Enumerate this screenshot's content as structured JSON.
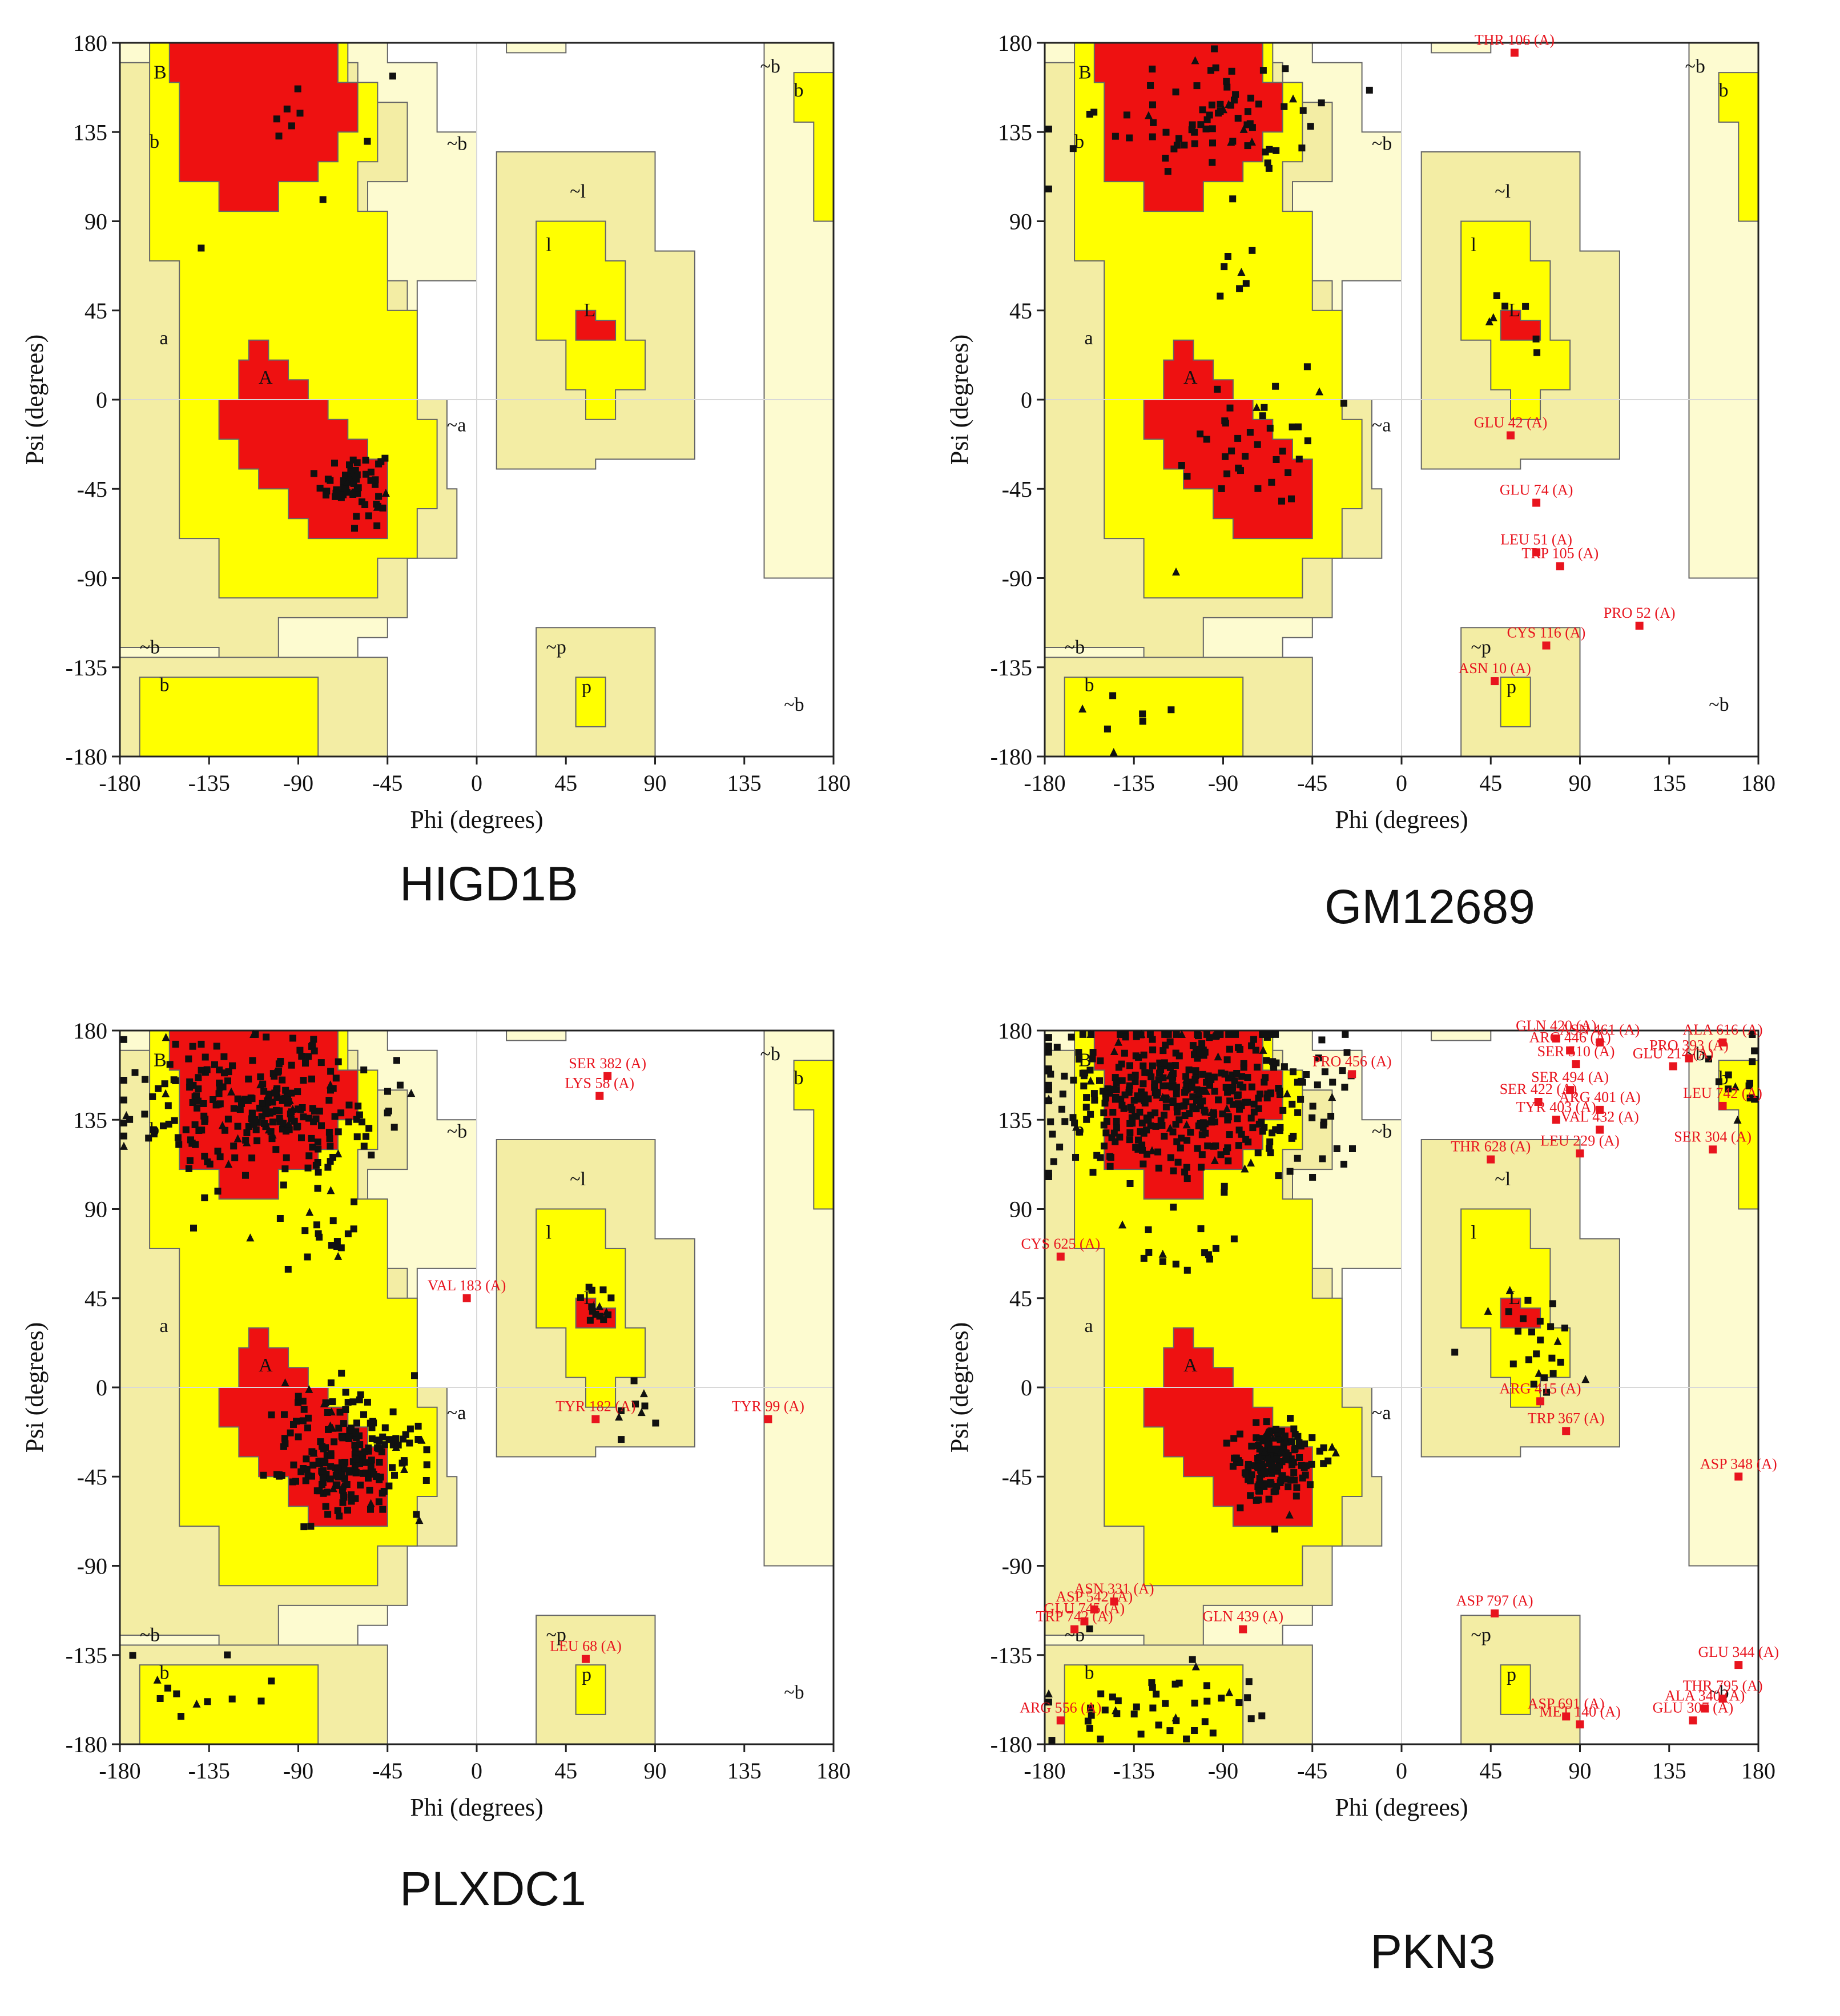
{
  "colors": {
    "core": "#ee1111",
    "allowed": "#ffff00",
    "generous": "#f3eda4",
    "outer": "#fdfbd0",
    "point": "#111111",
    "outlier": "#e8141e",
    "grid": "#d8d8d8"
  },
  "axis_text": {
    "xlabel": "Phi (degrees)",
    "ylabel": "Psi (degrees)",
    "ticks": [
      "-180",
      "-135",
      "-90",
      "-45",
      "0",
      "45",
      "90",
      "135",
      "180"
    ],
    "tick_values": [
      -180,
      -135,
      -90,
      -45,
      0,
      45,
      90,
      135,
      180
    ]
  },
  "region_labels": [
    {
      "text": "B",
      "phi": -163,
      "psi": 162
    },
    {
      "text": "b",
      "phi": -165,
      "psi": 127
    },
    {
      "text": "a",
      "phi": -160,
      "psi": 28
    },
    {
      "text": "A",
      "phi": -110,
      "psi": 8
    },
    {
      "text": "~b",
      "phi": -170,
      "psi": -128
    },
    {
      "text": "b",
      "phi": -160,
      "psi": -147
    },
    {
      "text": "~l",
      "phi": 47,
      "psi": 102
    },
    {
      "text": "l",
      "phi": 35,
      "psi": 75
    },
    {
      "text": "L",
      "phi": 54,
      "psi": 42
    },
    {
      "text": "~a",
      "phi": -15,
      "psi": -16
    },
    {
      "text": "~b",
      "phi": -15,
      "psi": 126
    },
    {
      "text": "~b",
      "phi": 143,
      "psi": 165
    },
    {
      "text": "b",
      "phi": 160,
      "psi": 153
    },
    {
      "text": "~p",
      "phi": 35,
      "psi": -128
    },
    {
      "text": "p",
      "phi": 53,
      "psi": -148
    },
    {
      "text": "~b",
      "phi": 155,
      "psi": -157
    }
  ],
  "panels": [
    {
      "title": "HIGD1B",
      "outliers": []
    },
    {
      "title": "GM12689",
      "outliers": [
        {
          "label": "THR 106 (A)",
          "phi": 57,
          "psi": 175
        },
        {
          "label": "GLU 42 (A)",
          "phi": 55,
          "psi": -18
        },
        {
          "label": "GLU 74 (A)",
          "phi": 68,
          "psi": -52
        },
        {
          "label": "LEU 51 (A)",
          "phi": 68,
          "psi": -77
        },
        {
          "label": "TRP 105 (A)",
          "phi": 80,
          "psi": -84
        },
        {
          "label": "PRO 52 (A)",
          "phi": 120,
          "psi": -114
        },
        {
          "label": "CYS 116 (A)",
          "phi": 73,
          "psi": -124
        },
        {
          "label": "ASN 10 (A)",
          "phi": 47,
          "psi": -142
        }
      ]
    },
    {
      "title": "PLXDC1",
      "outliers": [
        {
          "label": "SER 382 (A)",
          "phi": 66,
          "psi": 157
        },
        {
          "label": "LYS 58 (A)",
          "phi": 62,
          "psi": 147
        },
        {
          "label": "VAL 183 (A)",
          "phi": -5,
          "psi": 45
        },
        {
          "label": "TYR 182 (A)",
          "phi": 60,
          "psi": -16
        },
        {
          "label": "TYR 99 (A)",
          "phi": 147,
          "psi": -16
        },
        {
          "label": "LEU 68 (A)",
          "phi": 55,
          "psi": -137
        }
      ]
    },
    {
      "title": "PKN3",
      "outliers": [
        {
          "label": "PRO 456 (A)",
          "phi": -25,
          "psi": 158
        },
        {
          "label": "GLN 420 (A)",
          "phi": 78,
          "psi": 176
        },
        {
          "label": "ARG 446 (A)",
          "phi": 85,
          "psi": 170
        },
        {
          "label": "ASN 461 (A)",
          "phi": 100,
          "psi": 174
        },
        {
          "label": "SER 510 (A)",
          "phi": 88,
          "psi": 163
        },
        {
          "label": "PRO 393 (A)",
          "phi": 145,
          "psi": 166
        },
        {
          "label": "GLU 214 (A)",
          "phi": 137,
          "psi": 162
        },
        {
          "label": "ALA 616 (A)",
          "phi": 162,
          "psi": 174
        },
        {
          "label": "SER 494 (A)",
          "phi": 85,
          "psi": 150
        },
        {
          "label": "SER 422 (A)",
          "phi": 69,
          "psi": 144
        },
        {
          "label": "ARG 401 (A)",
          "phi": 100,
          "psi": 140
        },
        {
          "label": "TYR 403 (A)",
          "phi": 78,
          "psi": 135
        },
        {
          "label": "VAL 432 (A)",
          "phi": 100,
          "psi": 130
        },
        {
          "label": "LEU 742 (A)",
          "phi": 162,
          "psi": 142
        },
        {
          "label": "LEU 229 (A)",
          "phi": 90,
          "psi": 118
        },
        {
          "label": "THR 628 (A)",
          "phi": 45,
          "psi": 115
        },
        {
          "label": "SER 304 (A)",
          "phi": 157,
          "psi": 120
        },
        {
          "label": "CYS 625 (A)",
          "phi": -172,
          "psi": 66
        },
        {
          "label": "ARG 415 (A)",
          "phi": 70,
          "psi": -7
        },
        {
          "label": "TRP 367 (A)",
          "phi": 83,
          "psi": -22
        },
        {
          "label": "ASP 348 (A)",
          "phi": 170,
          "psi": -45
        },
        {
          "label": "ASN 331 (A)",
          "phi": -145,
          "psi": -108
        },
        {
          "label": "ASP 542 (A)",
          "phi": -155,
          "psi": -112
        },
        {
          "label": "GLU 745 (A)",
          "phi": -160,
          "psi": -118
        },
        {
          "label": "TRP 742 (A)",
          "phi": -165,
          "psi": -122
        },
        {
          "label": "GLN 439 (A)",
          "phi": -80,
          "psi": -122
        },
        {
          "label": "ASP 797 (A)",
          "phi": 47,
          "psi": -114
        },
        {
          "label": "GLU 344 (A)",
          "phi": 170,
          "psi": -140
        },
        {
          "label": "THR 795 (A)",
          "phi": 162,
          "psi": -157
        },
        {
          "label": "ALA 340 (A)",
          "phi": 153,
          "psi": -162
        },
        {
          "label": "GLU 307 (A)",
          "phi": 147,
          "psi": -168
        },
        {
          "label": "ASP 691 (A)",
          "phi": 83,
          "psi": -166
        },
        {
          "label": "MET 140 (A)",
          "phi": 90,
          "psi": -170
        },
        {
          "label": "ARG 556 (A)",
          "phi": -172,
          "psi": -168
        }
      ]
    }
  ],
  "chart_data": [
    {
      "type": "scatter",
      "title": "HIGD1B",
      "xlabel": "Phi (degrees)",
      "ylabel": "Psi (degrees)",
      "xlim": [
        -180,
        180
      ],
      "ylim": [
        -180,
        180
      ],
      "grid": true,
      "residue_clusters": [
        {
          "region": "alpha-helix",
          "center_phi": -65,
          "center_psi": -40,
          "count": 60
        },
        {
          "region": "beta-sheet",
          "center_phi": -90,
          "center_psi": 130,
          "count": 9
        }
      ]
    },
    {
      "type": "scatter",
      "title": "GM12689",
      "xlabel": "Phi (degrees)",
      "ylabel": "Psi (degrees)",
      "xlim": [
        -180,
        180
      ],
      "ylim": [
        -180,
        180
      ],
      "grid": true,
      "residue_clusters": [
        {
          "region": "alpha-helix",
          "center_phi": -75,
          "center_psi": -25,
          "count": 35
        },
        {
          "region": "beta-sheet",
          "center_phi": -90,
          "center_psi": 140,
          "count": 70
        }
      ]
    },
    {
      "type": "scatter",
      "title": "PLXDC1",
      "xlabel": "Phi (degrees)",
      "ylabel": "Psi (degrees)",
      "xlim": [
        -180,
        180
      ],
      "ylim": [
        -180,
        180
      ],
      "grid": true,
      "residue_clusters": [
        {
          "region": "alpha-helix",
          "center_phi": -65,
          "center_psi": -35,
          "count": 200
        },
        {
          "region": "beta-sheet",
          "center_phi": -110,
          "center_psi": 140,
          "count": 240
        }
      ]
    },
    {
      "type": "scatter",
      "title": "PKN3",
      "xlabel": "Phi (degrees)",
      "ylabel": "Psi (degrees)",
      "xlim": [
        -180,
        180
      ],
      "ylim": [
        -180,
        180
      ],
      "grid": true,
      "residue_clusters": [
        {
          "region": "alpha-helix",
          "center_phi": -65,
          "center_psi": -38,
          "count": 150
        },
        {
          "region": "beta-sheet",
          "center_phi": -110,
          "center_psi": 140,
          "count": 420
        }
      ]
    }
  ]
}
